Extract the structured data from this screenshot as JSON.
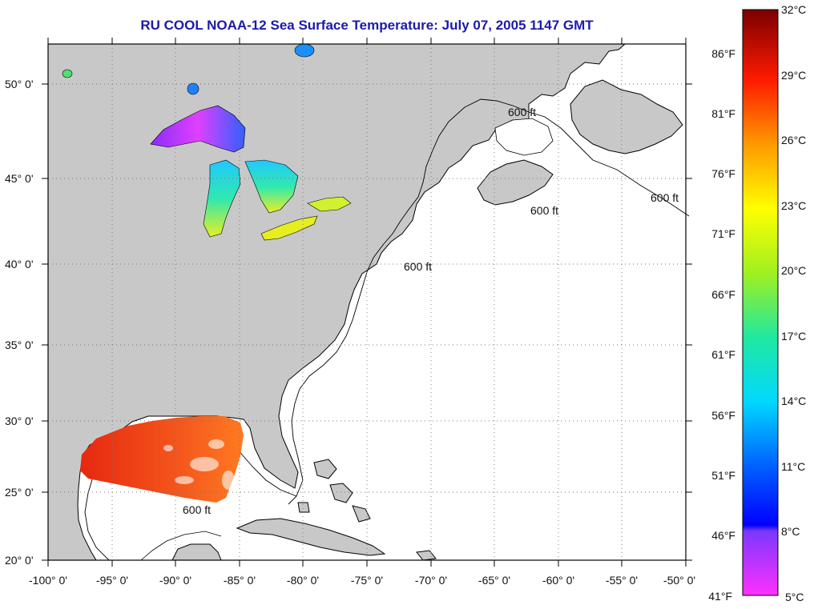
{
  "title": "RU COOL  NOAA-12  Sea Surface Temperature:  July 07, 2005 1147 GMT",
  "lat_labels": [
    "50° 0'",
    "45° 0'",
    "40° 0'",
    "35° 0'",
    "30° 0'",
    "25° 0'",
    "20° 0'"
  ],
  "lon_labels": [
    "-100° 0'",
    "-95° 0'",
    "-90° 0'",
    "-85° 0'",
    "-80° 0'",
    "-75° 0'",
    "-70° 0'",
    "-65° 0'",
    "-60° 0'",
    "-55° 0'",
    "-50° 0'"
  ],
  "contour_label": "600 ft",
  "colorbar": {
    "fahrenheit": [
      "86°F",
      "81°F",
      "76°F",
      "71°F",
      "66°F",
      "61°F",
      "56°F",
      "51°F",
      "46°F",
      "41°F"
    ],
    "celsius": [
      "32°C",
      "29°C",
      "26°C",
      "23°C",
      "20°C",
      "17°C",
      "14°C",
      "11°C",
      "8°C",
      "5°C"
    ]
  },
  "colors": {
    "land": "#c8c8c8",
    "ocean": "#ffffff",
    "title": "#1b1ba8",
    "warm_gulf": "#f2501e"
  }
}
